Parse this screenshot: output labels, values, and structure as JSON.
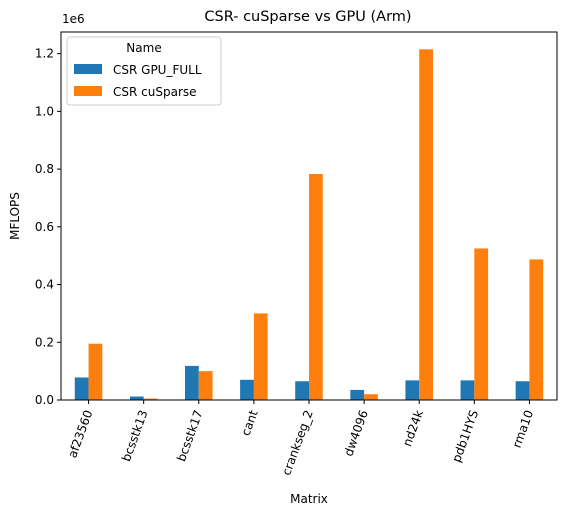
{
  "chart_data": {
    "type": "bar",
    "title": "CSR- cuSparse vs GPU (Arm)",
    "xlabel": "Matrix",
    "ylabel": "MFLOPS",
    "y_offset_label": "1e6",
    "ylim": [
      0,
      1275000
    ],
    "yticks": [
      0,
      200000,
      400000,
      600000,
      800000,
      1000000,
      1200000
    ],
    "ytick_labels": [
      "0.0",
      "0.2",
      "0.4",
      "0.6",
      "0.8",
      "1.0",
      "1.2"
    ],
    "categories": [
      "af23560",
      "bcsstk13",
      "bcsstk17",
      "cant",
      "crankseg_2",
      "dw4096",
      "nd24k",
      "pdb1HYS",
      "rma10"
    ],
    "series": [
      {
        "name": "CSR GPU_FULL",
        "color": "#1f77b4",
        "values": [
          78000,
          12000,
          118000,
          70000,
          65000,
          35000,
          68000,
          68000,
          65000
        ]
      },
      {
        "name": "CSR cuSparse",
        "color": "#ff7f0e",
        "values": [
          195000,
          5000,
          100000,
          300000,
          783000,
          20000,
          1215000,
          525000,
          487000
        ]
      }
    ],
    "legend": {
      "title": "Name",
      "placement": "top-left"
    },
    "grid": false
  }
}
